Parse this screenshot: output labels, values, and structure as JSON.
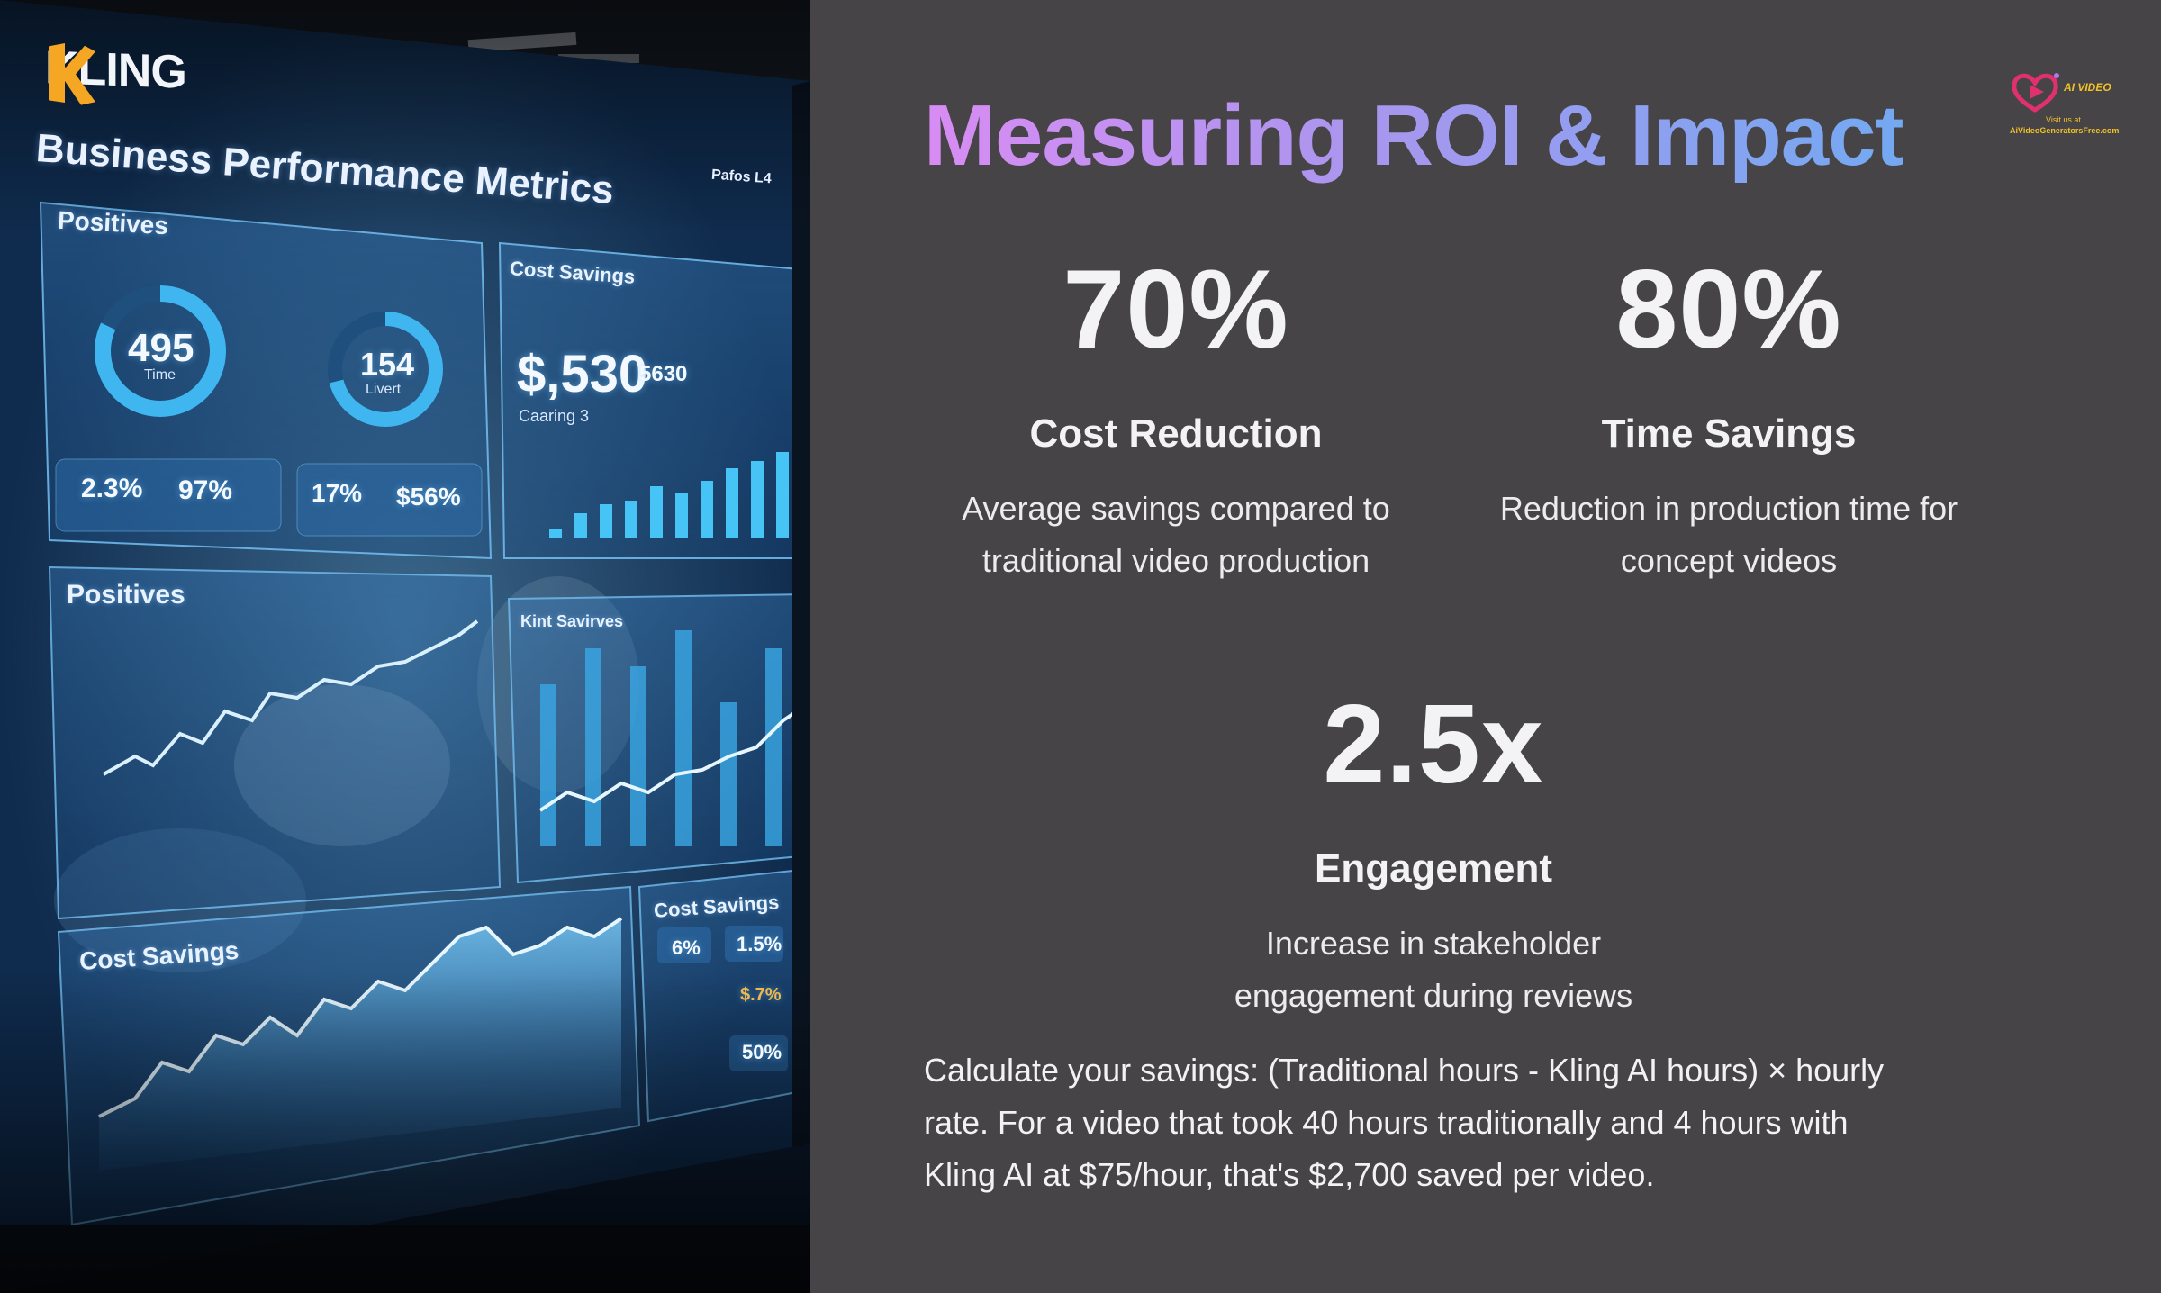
{
  "slide": {
    "title": "Measuring ROI & Impact",
    "title_gradient": [
      "#d88cf3",
      "#a996ee",
      "#74a9f2"
    ],
    "background_color": "#464446"
  },
  "brand_badge": {
    "name": "AI VIDEO",
    "visit": "Visit us at :",
    "url": "AiVideoGeneratorsFree.com",
    "icon": "play-heart-icon"
  },
  "stats": [
    {
      "value": "70%",
      "label": "Cost Reduction",
      "desc_line1": "Average savings compared to",
      "desc_line2": "traditional video production"
    },
    {
      "value": "80%",
      "label": "Time Savings",
      "desc_line1": "Reduction in production time for",
      "desc_line2": "concept videos"
    },
    {
      "value": "2.5x",
      "label": "Engagement",
      "desc_line1": "Increase in stakeholder",
      "desc_line2": "engagement during reviews"
    }
  ],
  "footnote": {
    "line1": "Calculate your savings: (Traditional hours - Kling AI hours) × hourly",
    "line2": "rate. For a video that took 40 hours traditionally and 4 hours with",
    "line3": "Kling AI at $75/hour, that's $2,700 saved per video."
  },
  "photo": {
    "logo_text": "KLING",
    "dashboard_title": "Business Performance Metrics",
    "status_text": "Pafos   L4",
    "panel_positives_top": "Positives",
    "ring_1_value": "495",
    "ring_1_label": "Time",
    "ring_2_value": "154",
    "ring_2_label": "Livert",
    "tile_a_1": "2.3%",
    "tile_a_2": "97%",
    "tile_b_1": "17%",
    "tile_b_2": "$56%",
    "panel_cost_savings_top": "Cost Savings",
    "big_value": "$,530",
    "big_value_small": "5630",
    "big_value_sub": "Caaring 3",
    "panel_positives_mid": "Positives",
    "panel_kint": "Kint Savirves",
    "panel_cost_savings_bottom": "Cost Savings",
    "panel_cost_savings_right": "Cost Savings",
    "chip_1": "6%",
    "chip_2": "1.5%",
    "chip_3": "$.7%",
    "chip_4": "50%",
    "accent": "#3fb6f0",
    "logo_color": "#f5a623"
  }
}
